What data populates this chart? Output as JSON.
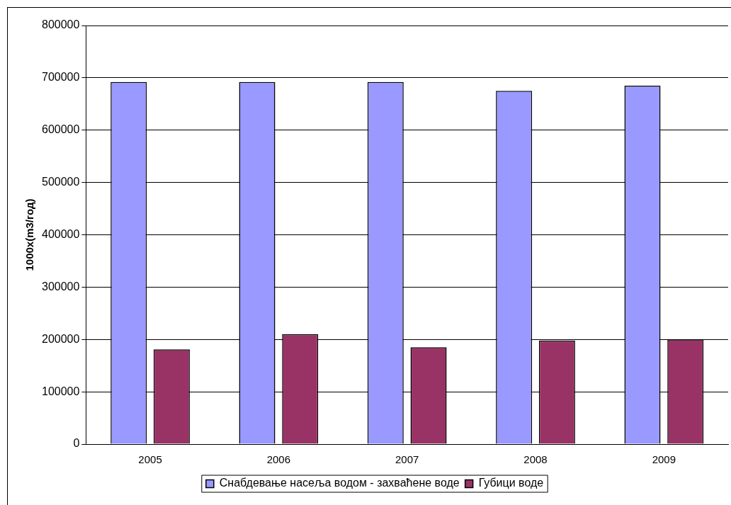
{
  "chart_data": {
    "type": "bar",
    "ylabel": "1000x(m3/год)",
    "categories": [
      "2005",
      "2006",
      "2007",
      "2008",
      "2009"
    ],
    "series": [
      {
        "name": "Снабдевање насеља водом - захваћене воде",
        "color": "#9999ff",
        "values": [
          692000,
          692000,
          692000,
          675000,
          685000
        ]
      },
      {
        "name": "Губици воде",
        "color": "#993366",
        "values": [
          181000,
          210000,
          185000,
          198000,
          200000
        ]
      }
    ],
    "ylim": [
      0,
      800000
    ],
    "yticks": [
      0,
      100000,
      200000,
      300000,
      400000,
      500000,
      600000,
      700000,
      800000
    ],
    "grid": "y",
    "legend": "bottom"
  }
}
